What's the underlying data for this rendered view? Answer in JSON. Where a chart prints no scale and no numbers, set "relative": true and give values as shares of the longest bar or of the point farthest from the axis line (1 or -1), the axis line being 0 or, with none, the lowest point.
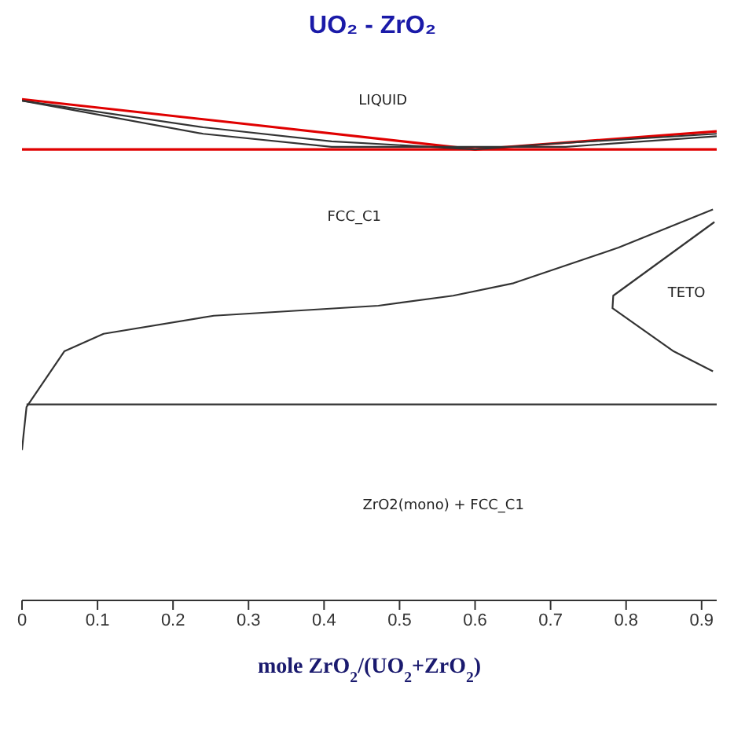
{
  "chart_data": {
    "type": "line",
    "title": "UO₂ - ZrO₂",
    "xlabel": "mole ZrO$_{2}$/(UO$_{2}$+ZrO$_{2}$)",
    "relative": true,
    "marker": "none",
    "xlim": [
      0,
      0.92
    ],
    "xticks": [
      {
        "value": 0,
        "label": "0"
      },
      0.1,
      0.2,
      0.3,
      0.4,
      0.5,
      0.6,
      0.7,
      0.8,
      0.9
    ],
    "series": [
      {
        "color": "#e00000",
        "x": [
          0,
          0.6,
          0.92
        ],
        "values": [
          1,
          0.9,
          0.936
        ]
      },
      {
        "color": "#e00000",
        "x": [
          0,
          0.92
        ],
        "values": [
          0.9,
          0.9
        ]
      },
      {
        "color": "#333333",
        "x": [
          0,
          0.24,
          0.41,
          0.6,
          0.7,
          0.92
        ],
        "values": [
          0.997,
          0.944,
          0.916,
          0.9,
          0.911,
          0.931
        ]
      },
      {
        "color": "#333333",
        "x": [
          0,
          0.24,
          0.41,
          0.72,
          0.92
        ],
        "values": [
          0.997,
          0.931,
          0.905,
          0.905,
          0.926
        ]
      },
      {
        "color": "#333333",
        "x": [
          0,
          0.002,
          0.006,
          0.056,
          0.108,
          0.254,
          0.472,
          0.571,
          0.651,
          0.79,
          0.915
        ],
        "values": [
          0.3,
          0.33,
          0.386,
          0.497,
          0.532,
          0.568,
          0.588,
          0.608,
          0.633,
          0.704,
          0.78
        ]
      },
      {
        "color": "#333333",
        "x": [
          0.917,
          0.783,
          0.782,
          0.863,
          0.915
        ],
        "values": [
          0.755,
          0.608,
          0.583,
          0.497,
          0.457
        ]
      },
      {
        "color": "#333333",
        "x": [
          0.006,
          0.92
        ],
        "values": [
          0.391,
          0.391
        ]
      }
    ],
    "annotations": [
      "LIQUID",
      "FCC_C1",
      "TETO",
      "ZrO2(mono) + FCC_C1"
    ]
  }
}
